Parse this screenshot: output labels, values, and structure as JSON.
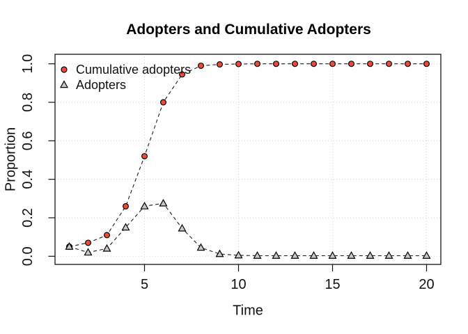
{
  "chart_data": {
    "type": "line",
    "title": "Adopters and Cumulative Adopters",
    "xlabel": "Time",
    "ylabel": "Proportion",
    "x": [
      1,
      2,
      3,
      4,
      5,
      6,
      7,
      8,
      9,
      10,
      11,
      12,
      13,
      14,
      15,
      16,
      17,
      18,
      19,
      20
    ],
    "series": [
      {
        "name": "Cumulative adopters",
        "marker": "circle",
        "color": "#f04b37",
        "values": [
          0.05,
          0.07,
          0.11,
          0.26,
          0.52,
          0.8,
          0.945,
          0.99,
          0.997,
          0.999,
          1.0,
          1.0,
          1.0,
          1.0,
          1.0,
          1.0,
          1.0,
          1.0,
          1.0,
          1.0
        ]
      },
      {
        "name": "Adopters",
        "marker": "triangle",
        "color": "#c8c8c8",
        "values": [
          0.05,
          0.02,
          0.04,
          0.15,
          0.26,
          0.275,
          0.145,
          0.045,
          0.012,
          0.005,
          0.003,
          0.003,
          0.003,
          0.003,
          0.003,
          0.003,
          0.003,
          0.003,
          0.003,
          0.003
        ]
      }
    ],
    "xticks": [
      "5",
      "10",
      "15",
      "20"
    ],
    "yticks": [
      "0.0",
      "0.2",
      "0.4",
      "0.6",
      "0.8",
      "1.0"
    ],
    "xlim": [
      1,
      20
    ],
    "ylim": [
      0,
      1
    ],
    "grid": true,
    "line_style": "dashed",
    "line_color": "#1a1a1a",
    "grid_color": "#d6d6d6",
    "box_color": "#000000",
    "legend_position": "top-left"
  }
}
